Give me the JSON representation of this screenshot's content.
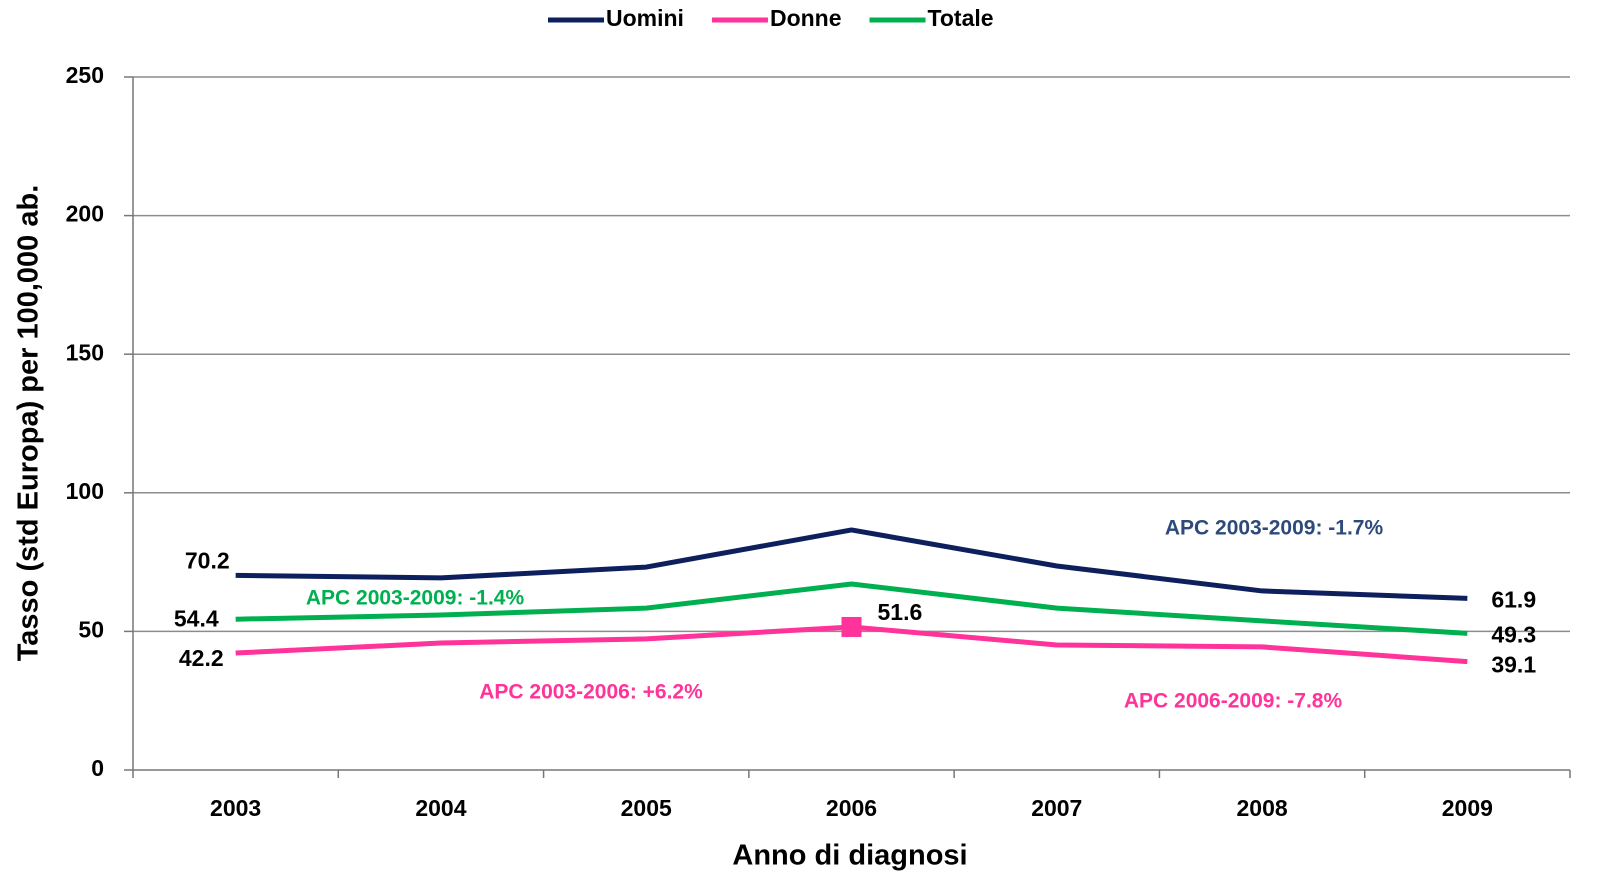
{
  "chart_data": {
    "type": "line",
    "y_label": "Tasso (std Europa) per 100,000 ab.",
    "x_label": "Anno di diagnosi",
    "categories": [
      "2003",
      "2004",
      "2005",
      "2006",
      "2007",
      "2008",
      "2009"
    ],
    "series": [
      {
        "name": "Uomini",
        "color": "#0d1f5c",
        "values": [
          70.2,
          69.3,
          73.2,
          86.6,
          73.6,
          64.6,
          61.9
        ],
        "value_labels": [
          "70.2",
          null,
          null,
          null,
          null,
          null,
          "61.9"
        ]
      },
      {
        "name": "Donne",
        "color": "#ff3399",
        "values": [
          42.2,
          45.8,
          47.3,
          51.6,
          45.1,
          44.4,
          39.1
        ],
        "value_labels": [
          "42.2",
          null,
          null,
          "51.6",
          null,
          null,
          "39.1"
        ],
        "marker_index": 3
      },
      {
        "name": "Totale",
        "color": "#00b050",
        "values": [
          54.4,
          55.9,
          58.4,
          67.1,
          58.4,
          53.8,
          49.3
        ],
        "value_labels": [
          "54.4",
          null,
          null,
          null,
          null,
          null,
          "49.3"
        ]
      }
    ],
    "annotations": [
      {
        "text": "APC 2003-2009:  -1.4%",
        "color": "#00b050"
      },
      {
        "text": "APC 2003-2009:  -1.7%",
        "color": "#2e4a7a"
      },
      {
        "text": "APC 2003-2006:  +6.2%",
        "color": "#ff3399"
      },
      {
        "text": "APC 2006-2009:  -7.8%",
        "color": "#ff3399"
      }
    ],
    "ylim": [
      0,
      250
    ],
    "yticks": [
      0,
      50,
      100,
      150,
      200,
      250
    ],
    "grid": true,
    "legend": "top"
  }
}
